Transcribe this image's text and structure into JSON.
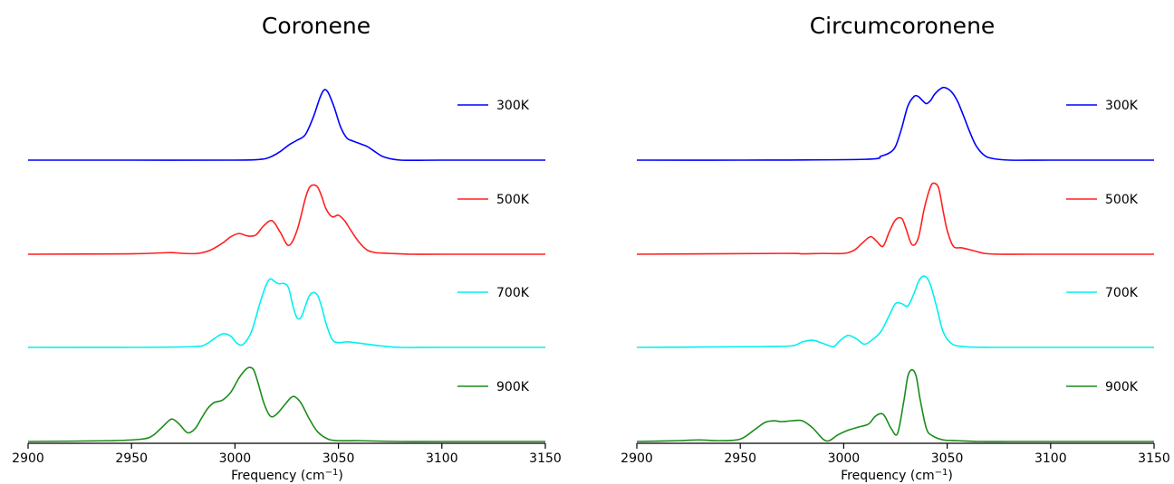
{
  "chart_data": [
    {
      "type": "line",
      "title": "Coronene",
      "xlabel": "Frequency (cm",
      "xlabel_sup": "−1",
      "xlabel_close": ")",
      "xlim": [
        2900,
        3150
      ],
      "xticks": [
        "2900",
        "2950",
        "3000",
        "3050",
        "3100",
        "3150"
      ],
      "grid": false,
      "legend_placement": "right of each trace",
      "series": [
        {
          "name": "300K",
          "color": "#0000ff",
          "x": [
            2900,
            2950,
            3000,
            3010,
            3015,
            3018,
            3022,
            3026,
            3030,
            3034,
            3038,
            3041,
            3043,
            3045,
            3048,
            3051,
            3054,
            3057,
            3060,
            3064,
            3068,
            3072,
            3080,
            3100,
            3150
          ],
          "y": [
            0,
            0,
            0,
            0.005,
            0.02,
            0.05,
            0.11,
            0.19,
            0.25,
            0.32,
            0.55,
            0.78,
            0.88,
            0.85,
            0.66,
            0.42,
            0.28,
            0.24,
            0.21,
            0.17,
            0.1,
            0.04,
            0,
            0,
            0
          ]
        },
        {
          "name": "500K",
          "color": "#ff2020",
          "x": [
            2900,
            2950,
            2968,
            2975,
            2982,
            2988,
            2994,
            2998,
            3002,
            3006,
            3010,
            3014,
            3018,
            3022,
            3026,
            3030,
            3034,
            3036,
            3038,
            3040,
            3042,
            3044,
            3047,
            3050,
            3053,
            3056,
            3060,
            3064,
            3068,
            3075,
            3085,
            3100,
            3150
          ],
          "y": [
            0,
            0.005,
            0.02,
            0.01,
            0.01,
            0.05,
            0.14,
            0.22,
            0.26,
            0.23,
            0.24,
            0.36,
            0.42,
            0.27,
            0.11,
            0.3,
            0.7,
            0.84,
            0.87,
            0.84,
            0.72,
            0.57,
            0.47,
            0.49,
            0.42,
            0.3,
            0.15,
            0.05,
            0.02,
            0.01,
            0,
            0,
            0
          ]
        },
        {
          "name": "700K",
          "color": "#00f0f0",
          "x": [
            2900,
            2950,
            2980,
            2986,
            2990,
            2994,
            2998,
            3001,
            3004,
            3008,
            3012,
            3015,
            3017,
            3019,
            3021,
            3024,
            3026,
            3028,
            3030,
            3032,
            3034,
            3036,
            3038,
            3040,
            3042,
            3044,
            3047,
            3050,
            3054,
            3058,
            3064,
            3070,
            3080,
            3100,
            3150
          ],
          "y": [
            0,
            0,
            0.01,
            0.04,
            0.11,
            0.17,
            0.14,
            0.05,
            0.04,
            0.2,
            0.55,
            0.78,
            0.86,
            0.83,
            0.8,
            0.8,
            0.74,
            0.52,
            0.37,
            0.38,
            0.52,
            0.65,
            0.69,
            0.65,
            0.5,
            0.3,
            0.1,
            0.06,
            0.07,
            0.06,
            0.04,
            0.02,
            0,
            0,
            0
          ]
        },
        {
          "name": "900K",
          "color": "#1a8c1a",
          "x": [
            2900,
            2940,
            2955,
            2960,
            2964,
            2968,
            2970,
            2973,
            2976,
            2978,
            2981,
            2984,
            2987,
            2990,
            2994,
            2998,
            3002,
            3005,
            3007,
            3009,
            3011,
            3014,
            3017,
            3020,
            3024,
            3027,
            3029,
            3032,
            3036,
            3040,
            3045,
            3050,
            3060,
            3080,
            3100,
            3150
          ],
          "y": [
            0,
            0.01,
            0.03,
            0.07,
            0.16,
            0.26,
            0.28,
            0.22,
            0.13,
            0.11,
            0.17,
            0.3,
            0.42,
            0.49,
            0.52,
            0.62,
            0.8,
            0.9,
            0.93,
            0.9,
            0.75,
            0.48,
            0.32,
            0.34,
            0.46,
            0.55,
            0.56,
            0.48,
            0.28,
            0.12,
            0.03,
            0.01,
            0.01,
            0,
            0,
            0
          ]
        }
      ]
    },
    {
      "type": "line",
      "title": "Circumcoronene",
      "xlabel": "Frequency (cm",
      "xlabel_sup": "−1",
      "xlabel_close": ")",
      "xlim": [
        2900,
        3150
      ],
      "xticks": [
        "2900",
        "2950",
        "3000",
        "3050",
        "3100",
        "3150"
      ],
      "grid": false,
      "legend_placement": "right of each trace",
      "series": [
        {
          "name": "300K",
          "color": "#0000ff",
          "x": [
            2900,
            2950,
            3010,
            3018,
            3022,
            3025,
            3028,
            3031,
            3034,
            3036,
            3038,
            3040,
            3042,
            3044,
            3047,
            3049,
            3052,
            3055,
            3058,
            3061,
            3064,
            3068,
            3072,
            3080,
            3100,
            3150
          ],
          "y": [
            0,
            0,
            0.01,
            0.05,
            0.09,
            0.17,
            0.4,
            0.68,
            0.8,
            0.8,
            0.75,
            0.71,
            0.75,
            0.83,
            0.9,
            0.91,
            0.86,
            0.74,
            0.55,
            0.35,
            0.18,
            0.06,
            0.02,
            0,
            0,
            0
          ]
        },
        {
          "name": "500K",
          "color": "#ff2020",
          "x": [
            2900,
            2970,
            2980,
            2990,
            3000,
            3005,
            3009,
            3013,
            3016,
            3019,
            3022,
            3025,
            3028,
            3030,
            3033,
            3036,
            3039,
            3042,
            3044,
            3046,
            3048,
            3050,
            3053,
            3057,
            3062,
            3068,
            3075,
            3090,
            3150
          ],
          "y": [
            0,
            0.01,
            0.005,
            0.01,
            0.01,
            0.05,
            0.14,
            0.22,
            0.16,
            0.1,
            0.28,
            0.43,
            0.45,
            0.33,
            0.12,
            0.2,
            0.58,
            0.85,
            0.89,
            0.82,
            0.55,
            0.3,
            0.1,
            0.08,
            0.05,
            0.01,
            0,
            0,
            0
          ]
        },
        {
          "name": "700K",
          "color": "#00f0f0",
          "x": [
            2900,
            2960,
            2975,
            2980,
            2985,
            2990,
            2995,
            2998,
            3002,
            3006,
            3010,
            3014,
            3018,
            3022,
            3025,
            3028,
            3031,
            3034,
            3036,
            3038,
            3040,
            3042,
            3045,
            3048,
            3052,
            3058,
            3070,
            3100,
            3150
          ],
          "y": [
            0,
            0.01,
            0.02,
            0.07,
            0.09,
            0.05,
            0.01,
            0.08,
            0.15,
            0.11,
            0.04,
            0.1,
            0.2,
            0.4,
            0.55,
            0.55,
            0.52,
            0.68,
            0.82,
            0.89,
            0.88,
            0.78,
            0.5,
            0.2,
            0.05,
            0.01,
            0,
            0,
            0
          ]
        },
        {
          "name": "900K",
          "color": "#1a8c1a",
          "x": [
            2900,
            2920,
            2930,
            2940,
            2950,
            2957,
            2962,
            2966,
            2970,
            2975,
            2980,
            2985,
            2990,
            2993,
            2997,
            3002,
            3007,
            3012,
            3015,
            3018,
            3020,
            3023,
            3026,
            3029,
            3031,
            3033,
            3035,
            3037,
            3040,
            3043,
            3048,
            3055,
            3065,
            3080,
            3100,
            3150
          ],
          "y": [
            0,
            0.01,
            0.02,
            0.01,
            0.03,
            0.15,
            0.24,
            0.26,
            0.25,
            0.26,
            0.26,
            0.17,
            0.03,
            0.01,
            0.08,
            0.14,
            0.18,
            0.22,
            0.31,
            0.35,
            0.31,
            0.16,
            0.1,
            0.5,
            0.82,
            0.9,
            0.82,
            0.52,
            0.16,
            0.07,
            0.02,
            0.01,
            0,
            0,
            0,
            0
          ]
        }
      ]
    }
  ]
}
